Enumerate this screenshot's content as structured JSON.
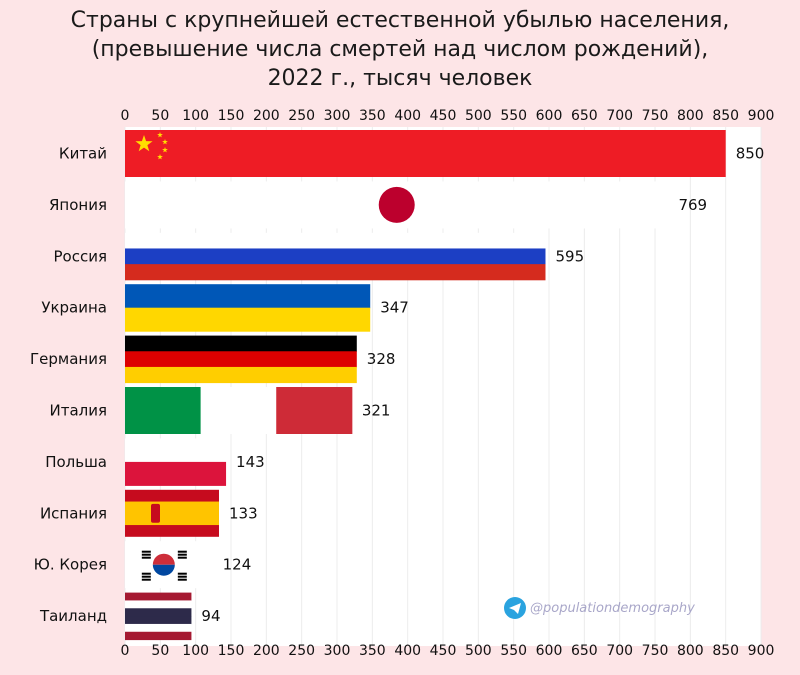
{
  "chart_data": {
    "type": "bar",
    "orientation": "horizontal",
    "title": "Страны с крупнейшей естественной убылью населения,",
    "subtitle": "(превышение числа смертей над числом рождений),",
    "subtitle2": "2022 г., тысяч человек",
    "categories": [
      "Китай",
      "Япония",
      "Россия",
      "Украина",
      "Германия",
      "Италия",
      "Польша",
      "Испания",
      "Ю. Корея",
      "Таиланд"
    ],
    "values": [
      850,
      769,
      595,
      347,
      328,
      321,
      143,
      133,
      124,
      94
    ],
    "xlim": [
      0,
      900
    ],
    "ticks": [
      "0",
      "50",
      "100",
      "150",
      "200",
      "250",
      "300",
      "350",
      "400",
      "450",
      "500",
      "550",
      "600",
      "650",
      "700",
      "750",
      "800",
      "850",
      "900"
    ],
    "grid": "vertical",
    "axis_labels_position": "top-and-bottom",
    "bar_styles": [
      "china-flag",
      "japan-flag",
      "russia-flag",
      "ukraine-flag",
      "germany-flag",
      "italy-flag",
      "poland-flag",
      "spain-flag",
      "korea-flag",
      "thailand-flag"
    ]
  },
  "watermark": {
    "icon": "telegram-icon",
    "text": "@populationdemography"
  },
  "colors": {
    "background": "#fde5e7",
    "grid": "#ececec",
    "china_red": "#ee1c25",
    "china_yellow": "#ffde00",
    "japan_red": "#bc002d",
    "russia_white": "#ffffff",
    "russia_blue": "#1c3fc4",
    "russia_red": "#d52b1e",
    "ukraine_blue": "#0057b7",
    "ukraine_yellow": "#ffd700",
    "germany_black": "#000000",
    "germany_red": "#dd0000",
    "germany_gold": "#ffce00",
    "italy_green": "#009246",
    "italy_red": "#ce2b37",
    "poland_red": "#dc143c",
    "spain_red": "#c60b1e",
    "spain_yellow": "#ffc400",
    "korea_red": "#cd2e3a",
    "korea_blue": "#0047a0",
    "thailand_red": "#a51931",
    "thailand_blue": "#2d2a4a",
    "telegram_blue": "#2aa3df"
  }
}
